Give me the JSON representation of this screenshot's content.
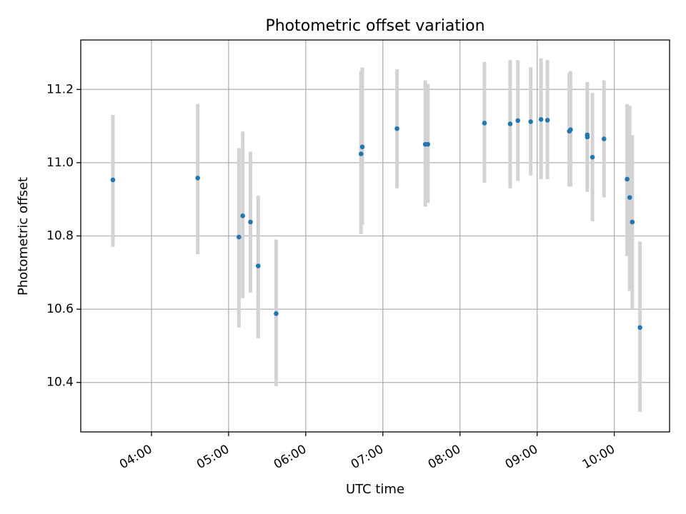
{
  "chart_data": {
    "type": "scatter",
    "title": "Photometric offset variation",
    "xlabel": "UTC time",
    "ylabel": "Photometric offset",
    "xlim": [
      "03:05",
      "10:43"
    ],
    "ylim": [
      10.265,
      11.335
    ],
    "grid": true,
    "x_ticks": [
      "04:00",
      "05:00",
      "06:00",
      "07:00",
      "08:00",
      "09:00",
      "10:00"
    ],
    "y_ticks": [
      10.4,
      10.6,
      10.8,
      11.0,
      11.2
    ],
    "point_color": "#1f77b4",
    "errorbar_color": "#d3d3d3",
    "points": [
      {
        "x": "03:30",
        "y": 10.953,
        "ylo": 10.77,
        "yhi": 11.13
      },
      {
        "x": "04:36",
        "y": 10.958,
        "ylo": 10.75,
        "yhi": 11.16
      },
      {
        "x": "05:08",
        "y": 10.797,
        "ylo": 10.55,
        "yhi": 11.04
      },
      {
        "x": "05:11",
        "y": 10.855,
        "ylo": 10.63,
        "yhi": 11.085
      },
      {
        "x": "05:17",
        "y": 10.838,
        "ylo": 10.645,
        "yhi": 11.03
      },
      {
        "x": "05:23",
        "y": 10.718,
        "ylo": 10.52,
        "yhi": 10.91
      },
      {
        "x": "05:37",
        "y": 10.588,
        "ylo": 10.39,
        "yhi": 10.79
      },
      {
        "x": "06:43",
        "y": 11.024,
        "ylo": 10.805,
        "yhi": 11.25
      },
      {
        "x": "06:44",
        "y": 11.043,
        "ylo": 10.83,
        "yhi": 11.26
      },
      {
        "x": "07:11",
        "y": 11.093,
        "ylo": 10.93,
        "yhi": 11.255
      },
      {
        "x": "07:33",
        "y": 11.05,
        "ylo": 10.88,
        "yhi": 11.225
      },
      {
        "x": "07:35",
        "y": 11.05,
        "ylo": 10.89,
        "yhi": 11.215
      },
      {
        "x": "08:19",
        "y": 11.108,
        "ylo": 10.945,
        "yhi": 11.275
      },
      {
        "x": "08:39",
        "y": 11.106,
        "ylo": 10.93,
        "yhi": 11.28
      },
      {
        "x": "08:45",
        "y": 11.115,
        "ylo": 10.95,
        "yhi": 11.28
      },
      {
        "x": "08:55",
        "y": 11.112,
        "ylo": 10.965,
        "yhi": 11.26
      },
      {
        "x": "09:03",
        "y": 11.118,
        "ylo": 10.955,
        "yhi": 11.285
      },
      {
        "x": "09:08",
        "y": 11.116,
        "ylo": 10.955,
        "yhi": 11.28
      },
      {
        "x": "09:25",
        "y": 11.086,
        "ylo": 10.935,
        "yhi": 11.245
      },
      {
        "x": "09:26",
        "y": 11.09,
        "ylo": 10.935,
        "yhi": 11.25
      },
      {
        "x": "09:39",
        "y": 11.07,
        "ylo": 10.92,
        "yhi": 11.215
      },
      {
        "x": "09:39",
        "y": 11.076,
        "ylo": 10.93,
        "yhi": 11.22
      },
      {
        "x": "09:43",
        "y": 11.015,
        "ylo": 10.84,
        "yhi": 11.19
      },
      {
        "x": "09:52",
        "y": 11.065,
        "ylo": 10.905,
        "yhi": 11.225
      },
      {
        "x": "10:10",
        "y": 10.955,
        "ylo": 10.745,
        "yhi": 11.16
      },
      {
        "x": "10:12",
        "y": 10.905,
        "ylo": 10.65,
        "yhi": 11.155
      },
      {
        "x": "10:14",
        "y": 10.838,
        "ylo": 10.6,
        "yhi": 11.075
      },
      {
        "x": "10:20",
        "y": 10.55,
        "ylo": 10.32,
        "yhi": 10.785
      }
    ]
  }
}
